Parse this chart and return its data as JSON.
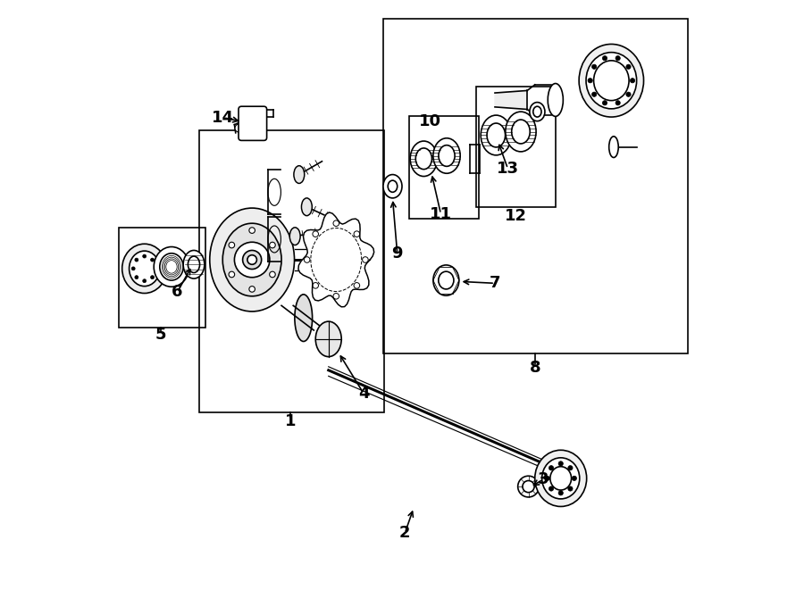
{
  "bg_color": "#ffffff",
  "lc": "#000000",
  "lw": 1.2,
  "figsize": [
    9.0,
    6.61
  ],
  "dpi": 100
}
